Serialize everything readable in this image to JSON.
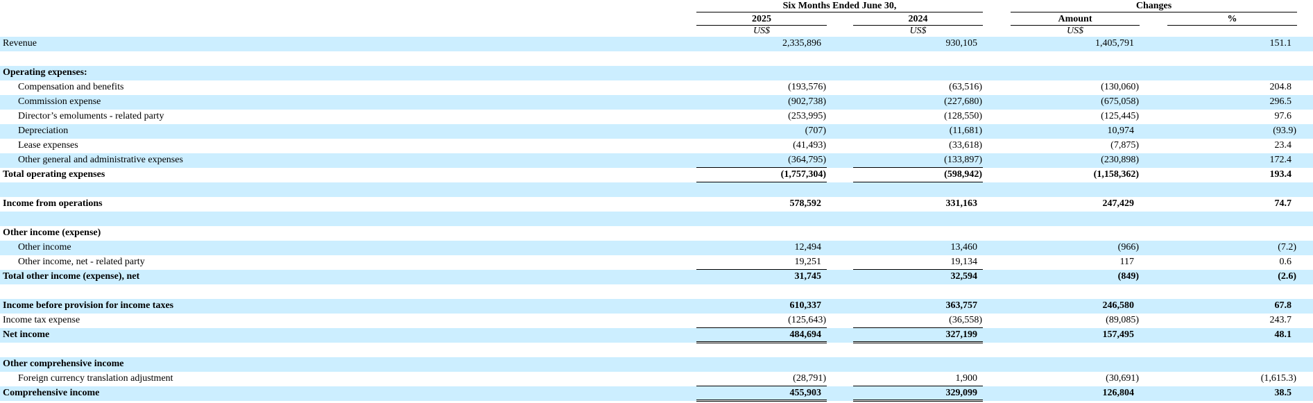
{
  "colors": {
    "row_highlight": "#cceeff",
    "rule": "#000000"
  },
  "table": {
    "header": {
      "period_group": "Six Months Ended June 30,",
      "changes_group": "Changes",
      "col_2025": "2025",
      "col_2024": "2024",
      "col_amount": "Amount",
      "col_pct": "%",
      "currency": "US$"
    },
    "rows": [
      {
        "label": "Revenue",
        "y2025": "2,335,896",
        "y2024": "930,105",
        "amount": "1,405,791",
        "pct": "151.1",
        "shaded": true
      },
      {
        "blank": true
      },
      {
        "label": "Operating expenses:",
        "bold": true,
        "shaded": true
      },
      {
        "label": "Compensation and benefits",
        "indent": true,
        "y2025": "(193,576)",
        "y2024": "(63,516)",
        "amount": "(130,060)",
        "pct": "204.8"
      },
      {
        "label": "Commission expense",
        "indent": true,
        "y2025": "(902,738)",
        "y2024": "(227,680)",
        "amount": "(675,058)",
        "pct": "296.5",
        "shaded": true
      },
      {
        "label": "Director’s emoluments - related party",
        "indent": true,
        "y2025": "(253,995)",
        "y2024": "(128,550)",
        "amount": "(125,445)",
        "pct": "97.6"
      },
      {
        "label": "Depreciation",
        "indent": true,
        "y2025": "(707)",
        "y2024": "(11,681)",
        "amount": "10,974",
        "pct": "(93.9)",
        "shaded": true
      },
      {
        "label": "Lease expenses",
        "indent": true,
        "y2025": "(41,493)",
        "y2024": "(33,618)",
        "amount": "(7,875)",
        "pct": "23.4"
      },
      {
        "label": "Other general and administrative expenses",
        "indent": true,
        "y2025": "(364,795)",
        "y2024": "(133,897)",
        "amount": "(230,898)",
        "pct": "172.4",
        "shaded": true
      },
      {
        "label": "Total operating expenses",
        "bold": true,
        "y2025": "(1,757,304)",
        "y2024": "(598,942)",
        "amount": "(1,158,362)",
        "pct": "193.4",
        "rule": "top-bottom"
      },
      {
        "blank": true,
        "shaded": true
      },
      {
        "label": "Income from operations",
        "bold": true,
        "y2025": "578,592",
        "y2024": "331,163",
        "amount": "247,429",
        "pct": "74.7"
      },
      {
        "blank": true,
        "shaded": true
      },
      {
        "label": "Other income (expense)",
        "bold": true
      },
      {
        "label": "Other income",
        "indent": true,
        "y2025": "12,494",
        "y2024": "13,460",
        "amount": "(966)",
        "pct": "(7.2)",
        "shaded": true
      },
      {
        "label": "Other income, net - related party",
        "indent": true,
        "y2025": "19,251",
        "y2024": "19,134",
        "amount": "117",
        "pct": "0.6",
        "rule": "bottom"
      },
      {
        "label": "Total other income (expense), net",
        "bold": true,
        "y2025": "31,745",
        "y2024": "32,594",
        "amount": "(849)",
        "pct": "(2.6)",
        "shaded": true
      },
      {
        "blank": true
      },
      {
        "label": "Income before provision for income taxes",
        "bold": true,
        "y2025": "610,337",
        "y2024": "363,757",
        "amount": "246,580",
        "pct": "67.8",
        "shaded": true
      },
      {
        "label": "Income tax expense",
        "y2025": "(125,643)",
        "y2024": "(36,558)",
        "amount": "(89,085)",
        "pct": "243.7",
        "rule": "bottom"
      },
      {
        "label": "Net income",
        "bold": true,
        "y2025": "484,694",
        "y2024": "327,199",
        "amount": "157,495",
        "pct": "48.1",
        "shaded": true,
        "rule": "double-bottom"
      },
      {
        "blank": true
      },
      {
        "label": "Other comprehensive income",
        "bold": true,
        "shaded": true
      },
      {
        "label": "Foreign currency translation adjustment",
        "indent": true,
        "y2025": "(28,791)",
        "y2024": "1,900",
        "amount": "(30,691)",
        "pct": "(1,615.3)",
        "rule": "bottom"
      },
      {
        "label": "Comprehensive income",
        "bold": true,
        "y2025": "455,903",
        "y2024": "329,099",
        "amount": "126,804",
        "pct": "38.5",
        "shaded": true,
        "rule": "double-bottom"
      }
    ]
  }
}
